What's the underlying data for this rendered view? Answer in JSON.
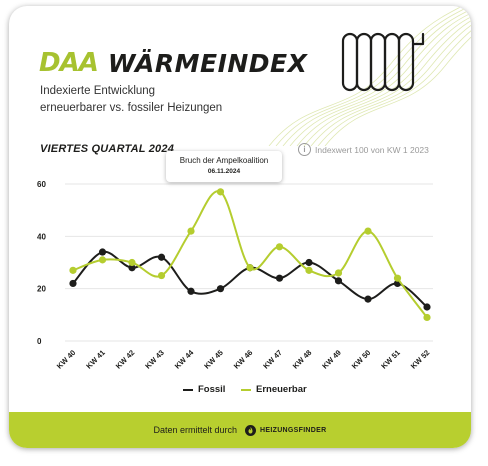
{
  "header": {
    "logo_mark": "DAA",
    "title": "WÄRMEINDEX",
    "subtitle_line1": "Indexierte Entwicklung",
    "subtitle_line2": "erneuerbarer vs. fossiler Heizungen",
    "quarter": "VIERTES QUARTAL 2024",
    "index_note": "Indexwert 100 von KW 1 2023"
  },
  "icons": {
    "radiator": "radiator-icon",
    "info": "info-icon",
    "flame": "flame-icon"
  },
  "tooltip": {
    "title": "Bruch der Ampelkoalition",
    "date": "06.11.2024"
  },
  "footer": {
    "text": "Daten ermittelt durch",
    "brand": "HEIZUNGSFINDER"
  },
  "colors": {
    "accent_green": "#b5cd2f",
    "fossil": "#1d1d1b",
    "footer_bg": "#b8cf2f"
  },
  "chart_data": {
    "type": "line",
    "title": "VIERTES QUARTAL 2024",
    "xlabel": "",
    "ylabel": "",
    "categories": [
      "KW 40",
      "KW 41",
      "KW 42",
      "KW 43",
      "KW 44",
      "KW 45",
      "KW 46",
      "KW 47",
      "KW 48",
      "KW 49",
      "KW 50",
      "KW 51",
      "KW 52"
    ],
    "ylim": [
      0,
      60
    ],
    "yticks": [
      0,
      20,
      40,
      60
    ],
    "grid": true,
    "legend": "bottom",
    "series": [
      {
        "name": "Fossil",
        "color": "#1d1d1b",
        "values": [
          22,
          34,
          28,
          32,
          19,
          20,
          28,
          24,
          30,
          23,
          16,
          22,
          13
        ]
      },
      {
        "name": "Erneuerbar",
        "color": "#b5cd2f",
        "values": [
          27,
          31,
          30,
          25,
          42,
          57,
          28,
          36,
          27,
          26,
          42,
          24,
          9
        ]
      }
    ],
    "annotation": {
      "category": "KW 45",
      "text": "Bruch der Ampelkoalition",
      "date": "06.11.2024"
    }
  }
}
